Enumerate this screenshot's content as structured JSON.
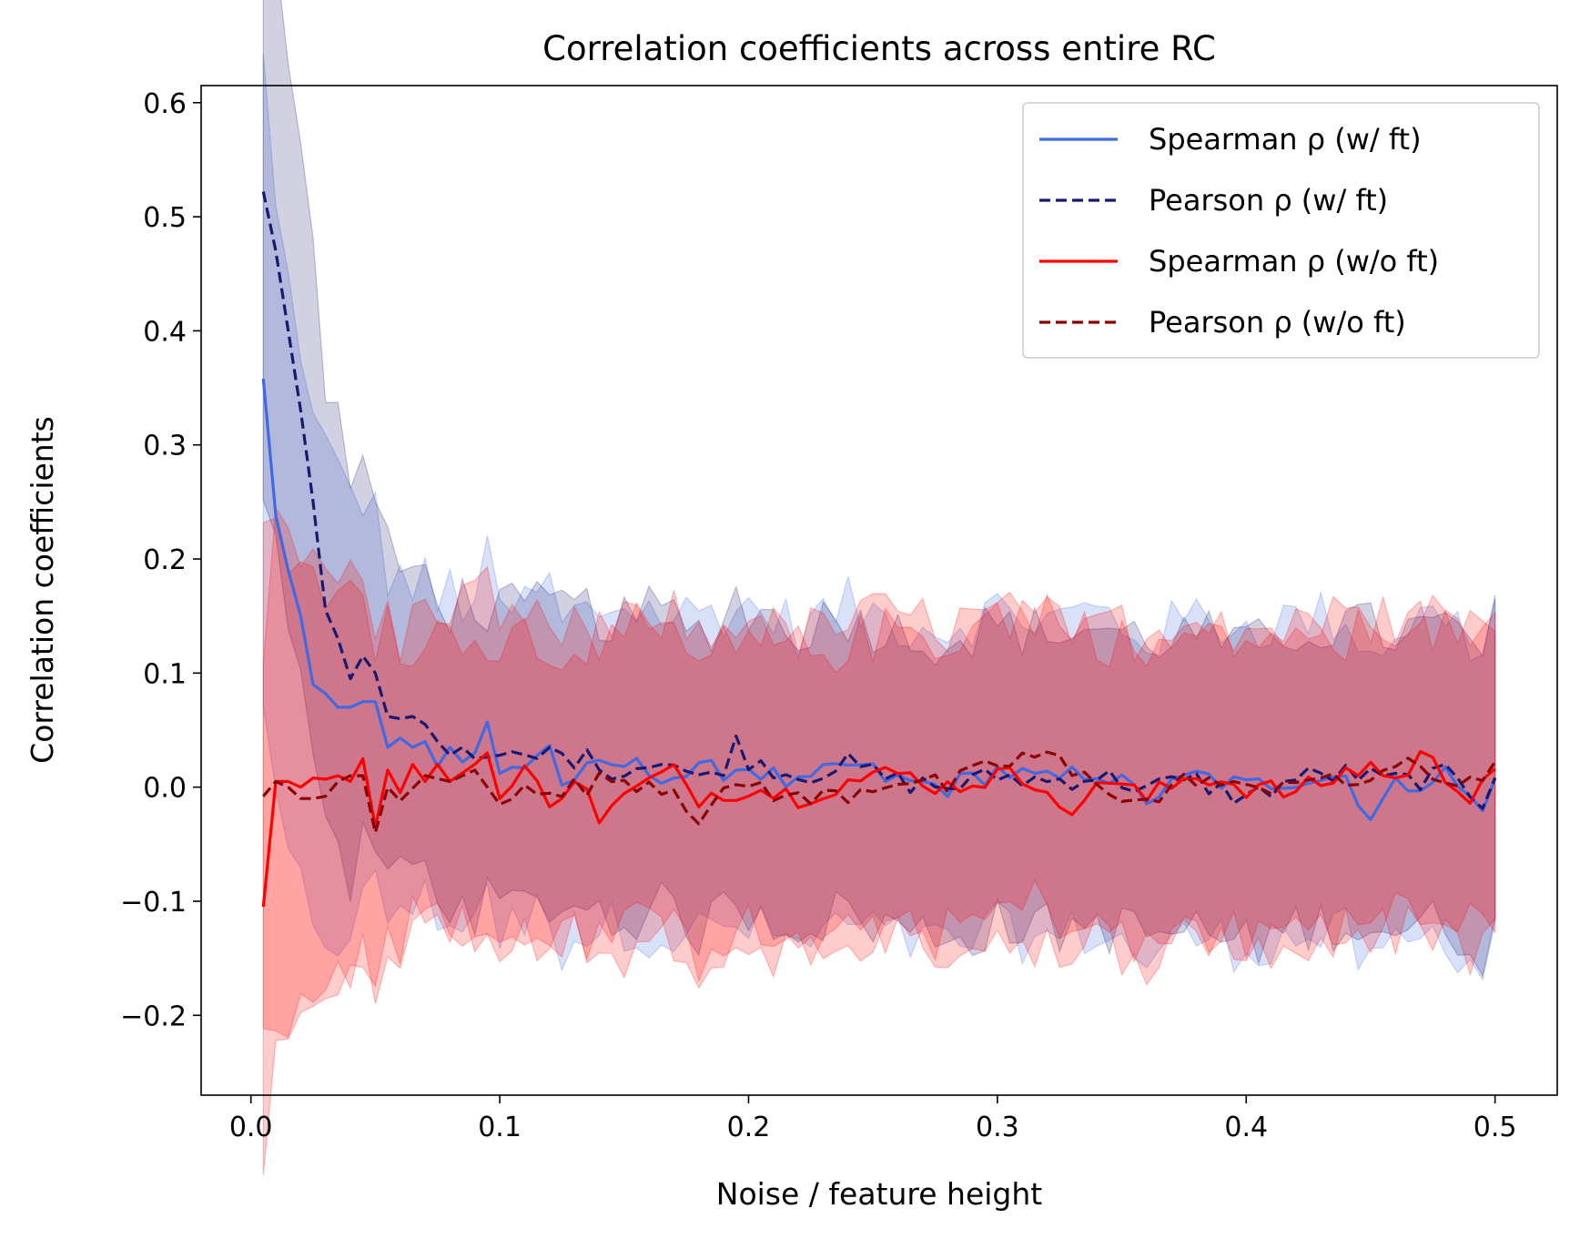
{
  "chart_data": {
    "type": "line",
    "title": "Correlation coefficients across entire RC",
    "xlabel": "Noise / feature height",
    "ylabel": "Correlation coefficients",
    "xlim": [
      -0.02,
      0.525
    ],
    "ylim": [
      -0.27,
      0.615
    ],
    "xticks": [
      0.0,
      0.1,
      0.2,
      0.3,
      0.4,
      0.5
    ],
    "xtick_labels": [
      "0.0",
      "0.1",
      "0.2",
      "0.3",
      "0.4",
      "0.5"
    ],
    "yticks": [
      -0.2,
      -0.1,
      0.0,
      0.1,
      0.2,
      0.3,
      0.4,
      0.5,
      0.6
    ],
    "ytick_labels": [
      "−0.2",
      "−0.1",
      "0.0",
      "0.1",
      "0.2",
      "0.3",
      "0.4",
      "0.5",
      "0.6"
    ],
    "grid": false,
    "legend_position": "top-right",
    "series": [
      {
        "name": "Spearman ρ (w/ ft)",
        "color": "#4169e1",
        "dash": "solid",
        "band_color": "#4169e1",
        "anchors": [
          [
            0.005,
            0.358
          ],
          [
            0.01,
            0.238
          ],
          [
            0.015,
            0.19
          ],
          [
            0.02,
            0.15
          ],
          [
            0.025,
            0.09
          ],
          [
            0.03,
            0.082
          ],
          [
            0.035,
            0.07
          ],
          [
            0.04,
            0.07
          ],
          [
            0.045,
            0.075
          ],
          [
            0.05,
            0.075
          ],
          [
            0.055,
            0.035
          ],
          [
            0.06,
            0.043
          ],
          [
            0.065,
            0.035
          ],
          [
            0.07,
            0.04
          ],
          [
            0.075,
            0.018
          ],
          [
            0.08,
            0.035
          ],
          [
            0.085,
            0.022
          ],
          [
            0.09,
            0.03
          ],
          [
            0.095,
            0.057
          ],
          [
            0.1,
            0.012
          ],
          [
            0.11,
            0.02
          ],
          [
            0.12,
            0.038
          ],
          [
            0.125,
            0.0
          ],
          [
            0.13,
            0.01
          ],
          [
            0.15,
            0.02
          ],
          [
            0.17,
            0.01
          ],
          [
            0.2,
            0.018
          ],
          [
            0.22,
            0.0
          ],
          [
            0.24,
            0.02
          ],
          [
            0.26,
            0.005
          ],
          [
            0.28,
            0.0
          ],
          [
            0.3,
            0.015
          ],
          [
            0.32,
            0.005
          ],
          [
            0.34,
            0.015
          ],
          [
            0.36,
            -0.01
          ],
          [
            0.38,
            0.01
          ],
          [
            0.4,
            0.0
          ],
          [
            0.42,
            0.008
          ],
          [
            0.44,
            0.01
          ],
          [
            0.45,
            -0.025
          ],
          [
            0.46,
            0.0
          ],
          [
            0.48,
            0.012
          ],
          [
            0.495,
            -0.022
          ],
          [
            0.5,
            0.015
          ]
        ],
        "band_half_width": 0.14
      },
      {
        "name": "Pearson ρ (w/ ft)",
        "color": "#191970",
        "dash": "dashed",
        "band_color": "#191970",
        "anchors": [
          [
            0.005,
            0.522
          ],
          [
            0.01,
            0.47
          ],
          [
            0.015,
            0.4
          ],
          [
            0.02,
            0.33
          ],
          [
            0.025,
            0.25
          ],
          [
            0.03,
            0.155
          ],
          [
            0.035,
            0.13
          ],
          [
            0.04,
            0.095
          ],
          [
            0.045,
            0.115
          ],
          [
            0.05,
            0.1
          ],
          [
            0.055,
            0.062
          ],
          [
            0.06,
            0.06
          ],
          [
            0.065,
            0.062
          ],
          [
            0.07,
            0.055
          ],
          [
            0.075,
            0.04
          ],
          [
            0.08,
            0.028
          ],
          [
            0.085,
            0.035
          ],
          [
            0.09,
            0.025
          ],
          [
            0.1,
            0.028
          ],
          [
            0.11,
            0.022
          ],
          [
            0.12,
            0.03
          ],
          [
            0.14,
            0.022
          ],
          [
            0.15,
            0.012
          ],
          [
            0.16,
            0.025
          ],
          [
            0.17,
            0.02
          ],
          [
            0.18,
            0.005
          ],
          [
            0.19,
            0.02
          ],
          [
            0.195,
            0.038
          ],
          [
            0.2,
            0.025
          ],
          [
            0.22,
            0.01
          ],
          [
            0.24,
            0.02
          ],
          [
            0.26,
            0.005
          ],
          [
            0.28,
            0.0
          ],
          [
            0.3,
            0.01
          ],
          [
            0.32,
            0.005
          ],
          [
            0.34,
            0.01
          ],
          [
            0.36,
            0.0
          ],
          [
            0.38,
            0.005
          ],
          [
            0.4,
            -0.01
          ],
          [
            0.42,
            0.008
          ],
          [
            0.44,
            0.012
          ],
          [
            0.46,
            0.005
          ],
          [
            0.48,
            0.01
          ],
          [
            0.495,
            -0.012
          ],
          [
            0.5,
            0.015
          ]
        ],
        "band_half_width": 0.13
      },
      {
        "name": "Spearman ρ (w/o ft)",
        "color": "#ff0000",
        "dash": "solid",
        "band_color": "#ff0000",
        "anchors": [
          [
            0.005,
            -0.105
          ],
          [
            0.01,
            0.005
          ],
          [
            0.015,
            0.005
          ],
          [
            0.02,
            0.0
          ],
          [
            0.025,
            0.008
          ],
          [
            0.03,
            0.007
          ],
          [
            0.035,
            0.01
          ],
          [
            0.04,
            0.005
          ],
          [
            0.045,
            0.025
          ],
          [
            0.05,
            -0.035
          ],
          [
            0.055,
            0.015
          ],
          [
            0.06,
            -0.005
          ],
          [
            0.065,
            0.02
          ],
          [
            0.07,
            0.005
          ],
          [
            0.075,
            0.02
          ],
          [
            0.08,
            0.005
          ],
          [
            0.09,
            0.02
          ],
          [
            0.095,
            0.03
          ],
          [
            0.1,
            -0.01
          ],
          [
            0.11,
            0.012
          ],
          [
            0.12,
            -0.01
          ],
          [
            0.13,
            0.008
          ],
          [
            0.14,
            -0.025
          ],
          [
            0.15,
            -0.01
          ],
          [
            0.16,
            0.005
          ],
          [
            0.17,
            0.012
          ],
          [
            0.18,
            -0.008
          ],
          [
            0.2,
            0.0
          ],
          [
            0.22,
            -0.008
          ],
          [
            0.24,
            0.005
          ],
          [
            0.26,
            0.012
          ],
          [
            0.28,
            0.0
          ],
          [
            0.3,
            0.01
          ],
          [
            0.32,
            0.005
          ],
          [
            0.33,
            -0.032
          ],
          [
            0.34,
            0.01
          ],
          [
            0.36,
            -0.01
          ],
          [
            0.38,
            0.012
          ],
          [
            0.4,
            0.0
          ],
          [
            0.42,
            -0.005
          ],
          [
            0.44,
            0.012
          ],
          [
            0.45,
            0.02
          ],
          [
            0.46,
            0.005
          ],
          [
            0.47,
            0.028
          ],
          [
            0.48,
            0.01
          ],
          [
            0.49,
            -0.005
          ],
          [
            0.5,
            0.02
          ]
        ],
        "band_half_width": 0.14
      },
      {
        "name": "Pearson ρ (w/o ft)",
        "color": "#8b0000",
        "dash": "dashed",
        "band_color": "#ff0000",
        "anchors": [
          [
            0.005,
            -0.008
          ],
          [
            0.01,
            0.005
          ],
          [
            0.015,
            0.0
          ],
          [
            0.02,
            -0.01
          ],
          [
            0.025,
            -0.01
          ],
          [
            0.03,
            -0.008
          ],
          [
            0.035,
            0.005
          ],
          [
            0.04,
            0.01
          ],
          [
            0.045,
            0.01
          ],
          [
            0.05,
            -0.04
          ],
          [
            0.055,
            0.0
          ],
          [
            0.06,
            -0.012
          ],
          [
            0.07,
            0.01
          ],
          [
            0.08,
            0.005
          ],
          [
            0.09,
            0.015
          ],
          [
            0.1,
            -0.015
          ],
          [
            0.11,
            0.01
          ],
          [
            0.12,
            -0.012
          ],
          [
            0.13,
            0.0
          ],
          [
            0.15,
            0.008
          ],
          [
            0.17,
            0.0
          ],
          [
            0.18,
            -0.025
          ],
          [
            0.2,
            0.005
          ],
          [
            0.22,
            -0.012
          ],
          [
            0.24,
            -0.005
          ],
          [
            0.26,
            0.008
          ],
          [
            0.28,
            0.0
          ],
          [
            0.3,
            0.02
          ],
          [
            0.32,
            0.03
          ],
          [
            0.33,
            0.01
          ],
          [
            0.34,
            0.005
          ],
          [
            0.36,
            -0.015
          ],
          [
            0.38,
            0.01
          ],
          [
            0.4,
            -0.005
          ],
          [
            0.42,
            0.01
          ],
          [
            0.44,
            0.0
          ],
          [
            0.46,
            0.02
          ],
          [
            0.48,
            0.005
          ],
          [
            0.5,
            0.015
          ]
        ],
        "band_half_width": 0.13
      }
    ]
  }
}
